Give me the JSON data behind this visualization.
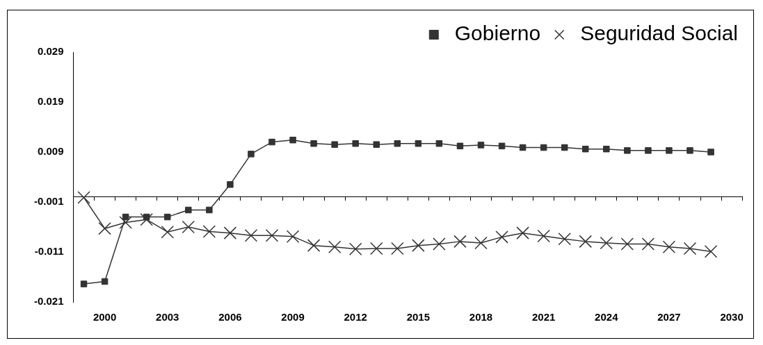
{
  "chart_data": {
    "type": "line",
    "categories": [
      null,
      "2000",
      null,
      null,
      "2003",
      null,
      null,
      "2006",
      null,
      null,
      "2009",
      null,
      null,
      "2012",
      null,
      null,
      "2015",
      null,
      null,
      "2018",
      null,
      null,
      "2021",
      null,
      null,
      "2024",
      null,
      null,
      "2027",
      null,
      null,
      "2030"
    ],
    "series": [
      {
        "name": "Gobierno",
        "color": "#333333",
        "marker": "square",
        "values": [
          -0.0174,
          -0.0169,
          -0.004,
          -0.004,
          -0.004,
          -0.0026,
          -0.0026,
          0.0025,
          0.0086,
          0.011,
          0.0114,
          0.0107,
          0.0105,
          0.0107,
          0.0105,
          0.0107,
          0.0107,
          0.0107,
          0.0102,
          0.0104,
          0.0102,
          0.0099,
          0.0099,
          0.0099,
          0.0096,
          0.0096,
          0.0093,
          0.0093,
          0.0093,
          0.0093,
          0.009,
          null
        ]
      },
      {
        "name": "Seguridad Social",
        "color": "#333333",
        "marker": "cross",
        "values": [
          -0.0001,
          -0.0063,
          -0.0051,
          -0.0045,
          -0.007,
          -0.006,
          -0.0069,
          -0.0072,
          -0.0077,
          -0.0077,
          -0.0079,
          -0.0097,
          -0.01,
          -0.0104,
          -0.0103,
          -0.0103,
          -0.0097,
          -0.0094,
          -0.0089,
          -0.0092,
          -0.008,
          -0.0072,
          -0.0078,
          -0.0084,
          -0.0089,
          -0.0092,
          -0.0094,
          -0.0094,
          -0.01,
          -0.0103,
          -0.0109,
          null
        ]
      }
    ],
    "ylim": [
      -0.021,
      0.029
    ],
    "yticks": [
      -0.021,
      -0.011,
      -0.001,
      0.009,
      0.019,
      0.029
    ],
    "grid": false,
    "legend": "top right",
    "line_style": "solid"
  }
}
